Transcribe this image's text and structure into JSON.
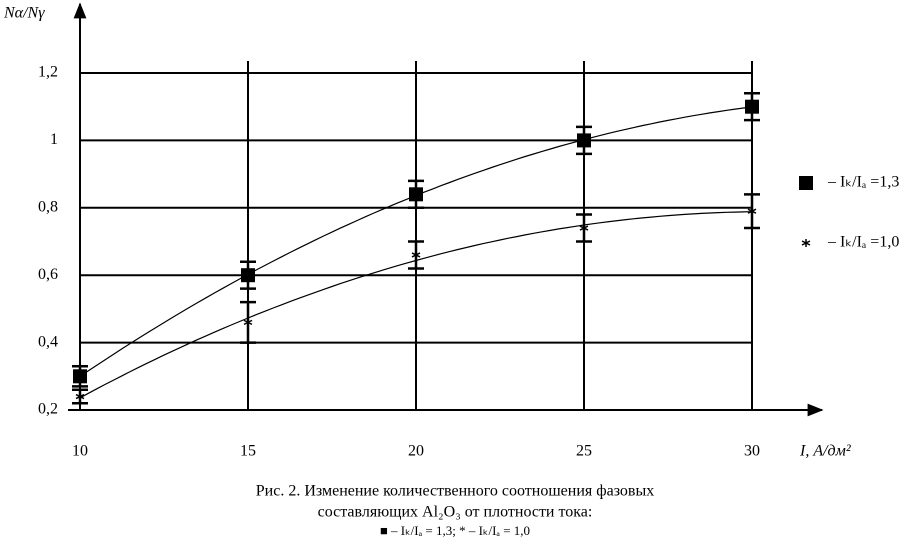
{
  "chart_data": {
    "type": "scatter",
    "y_label": "Nα/Nγ",
    "x_label": "I, А/дм²",
    "x": [
      10,
      15,
      20,
      25,
      30
    ],
    "series": [
      {
        "name": "– Iₖ/Iₐ =1,3",
        "marker": "square",
        "color": "#000000",
        "values": [
          0.3,
          0.6,
          0.84,
          1.0,
          1.1
        ],
        "errors": [
          0.03,
          0.04,
          0.04,
          0.04,
          0.04
        ]
      },
      {
        "name": "– Iₖ/Iₐ =1,0",
        "marker": "star",
        "color": "#000000",
        "values": [
          0.24,
          0.46,
          0.66,
          0.74,
          0.79
        ],
        "errors": [
          0.02,
          0.06,
          0.04,
          0.04,
          0.05
        ]
      }
    ],
    "xlim": [
      10,
      30
    ],
    "ylim": [
      0.2,
      1.2
    ],
    "xticks": [
      10,
      15,
      20,
      25,
      30
    ],
    "yticks": [
      {
        "value": 0.2,
        "label": "0,2"
      },
      {
        "value": 0.4,
        "label": "0,4"
      },
      {
        "value": 0.6,
        "label": "0,6"
      },
      {
        "value": 0.8,
        "label": "0,8"
      },
      1,
      {
        "value": 1.2,
        "label": "1,2"
      }
    ],
    "grid": true,
    "caption": [
      "Рис. 2. Изменение количественного соотношения фазовых",
      "составляющих Al₂O₃ от плотности тока:",
      "■ – Iₖ/Iₐ = 1,3; * – Iₖ/Iₐ = 1,0"
    ]
  }
}
